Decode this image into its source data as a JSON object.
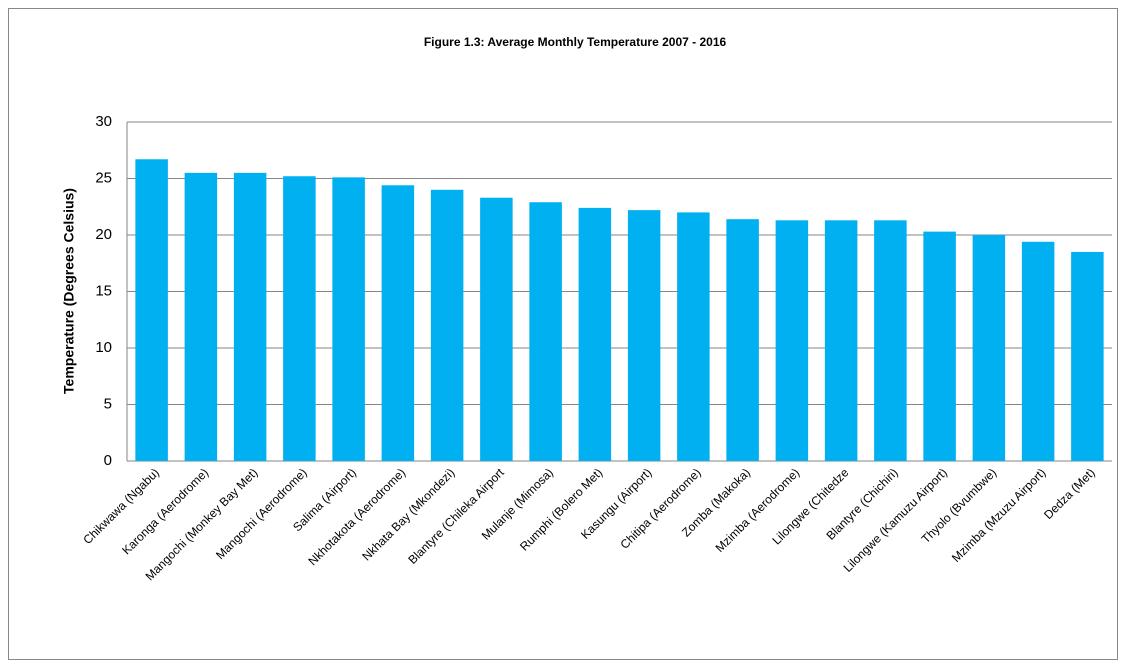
{
  "chart_data": {
    "type": "bar",
    "title": "Figure 1.3: Average Monthly Temperature 2007 - 2016",
    "y_label": "Temperature (Degrees Celsius)",
    "categories": [
      "Chikwawa (Ngabu)",
      "Karonga (Aerodrome)",
      "Mangochi (Monkey Bay Met)",
      "Mangochi (Aerodrome)",
      "Salima (Airport)",
      "Nkhotakota (Aerodrome)",
      "Nkhata Bay (Mkondezi)",
      "Blantyre (Chileka Airport",
      "Mulanje (Mimosa)",
      "Rumphi (Bolero Met)",
      "Kasungu (Airport)",
      "Chitipa  (Aerodrome)",
      "Zomba (Makoka)",
      "Mzimba (Aerodrome)",
      "Lilongwe (Chitedze",
      "Blantyre (Chichiri)",
      "Lilongwe (Kamuzu Airport)",
      "Thyolo (Bvumbwe)",
      "Mzimba (Mzuzu Airport)",
      "Dedza (Met)"
    ],
    "values": [
      26.7,
      25.5,
      25.5,
      25.2,
      25.1,
      24.4,
      24.0,
      23.3,
      22.9,
      22.4,
      22.2,
      22.0,
      21.4,
      21.3,
      21.3,
      21.3,
      20.3,
      20.0,
      19.4,
      18.5
    ],
    "color": "#00b0f0",
    "ylim": [
      0,
      30
    ],
    "yticks": [
      0,
      5,
      10,
      15,
      20,
      25,
      30
    ],
    "grid": true
  }
}
